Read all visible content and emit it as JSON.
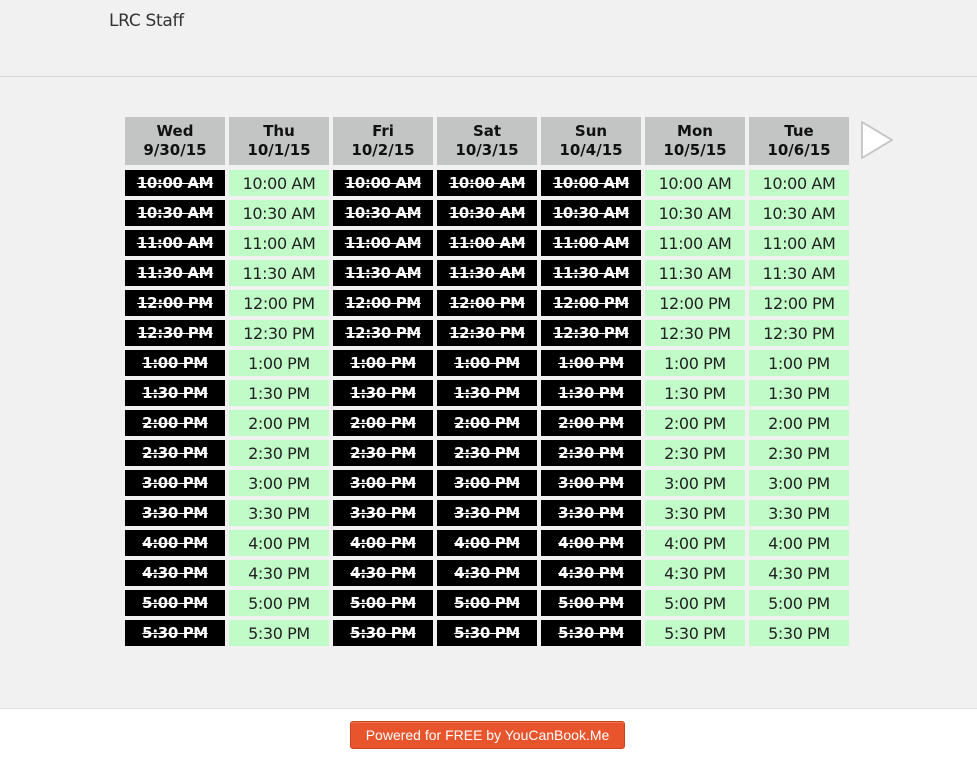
{
  "page": {
    "title": "LRC Staff"
  },
  "schedule": {
    "days": [
      {
        "weekday": "Wed",
        "date": "9/30/15",
        "slots": [
          {
            "time": "10:00 AM",
            "available": false
          },
          {
            "time": "10:30 AM",
            "available": false
          },
          {
            "time": "11:00 AM",
            "available": false
          },
          {
            "time": "11:30 AM",
            "available": false
          },
          {
            "time": "12:00 PM",
            "available": false
          },
          {
            "time": "12:30 PM",
            "available": false
          },
          {
            "time": "1:00 PM",
            "available": false
          },
          {
            "time": "1:30 PM",
            "available": false
          },
          {
            "time": "2:00 PM",
            "available": false
          },
          {
            "time": "2:30 PM",
            "available": false
          },
          {
            "time": "3:00 PM",
            "available": false
          },
          {
            "time": "3:30 PM",
            "available": false
          },
          {
            "time": "4:00 PM",
            "available": false
          },
          {
            "time": "4:30 PM",
            "available": false
          },
          {
            "time": "5:00 PM",
            "available": false
          },
          {
            "time": "5:30 PM",
            "available": false
          }
        ]
      },
      {
        "weekday": "Thu",
        "date": "10/1/15",
        "slots": [
          {
            "time": "10:00 AM",
            "available": true
          },
          {
            "time": "10:30 AM",
            "available": true
          },
          {
            "time": "11:00 AM",
            "available": true
          },
          {
            "time": "11:30 AM",
            "available": true
          },
          {
            "time": "12:00 PM",
            "available": true
          },
          {
            "time": "12:30 PM",
            "available": true
          },
          {
            "time": "1:00 PM",
            "available": true
          },
          {
            "time": "1:30 PM",
            "available": true
          },
          {
            "time": "2:00 PM",
            "available": true
          },
          {
            "time": "2:30 PM",
            "available": true
          },
          {
            "time": "3:00 PM",
            "available": true
          },
          {
            "time": "3:30 PM",
            "available": true
          },
          {
            "time": "4:00 PM",
            "available": true
          },
          {
            "time": "4:30 PM",
            "available": true
          },
          {
            "time": "5:00 PM",
            "available": true
          },
          {
            "time": "5:30 PM",
            "available": true
          }
        ]
      },
      {
        "weekday": "Fri",
        "date": "10/2/15",
        "slots": [
          {
            "time": "10:00 AM",
            "available": false
          },
          {
            "time": "10:30 AM",
            "available": false
          },
          {
            "time": "11:00 AM",
            "available": false
          },
          {
            "time": "11:30 AM",
            "available": false
          },
          {
            "time": "12:00 PM",
            "available": false
          },
          {
            "time": "12:30 PM",
            "available": false
          },
          {
            "time": "1:00 PM",
            "available": false
          },
          {
            "time": "1:30 PM",
            "available": false
          },
          {
            "time": "2:00 PM",
            "available": false
          },
          {
            "time": "2:30 PM",
            "available": false
          },
          {
            "time": "3:00 PM",
            "available": false
          },
          {
            "time": "3:30 PM",
            "available": false
          },
          {
            "time": "4:00 PM",
            "available": false
          },
          {
            "time": "4:30 PM",
            "available": false
          },
          {
            "time": "5:00 PM",
            "available": false
          },
          {
            "time": "5:30 PM",
            "available": false
          }
        ]
      },
      {
        "weekday": "Sat",
        "date": "10/3/15",
        "slots": [
          {
            "time": "10:00 AM",
            "available": false
          },
          {
            "time": "10:30 AM",
            "available": false
          },
          {
            "time": "11:00 AM",
            "available": false
          },
          {
            "time": "11:30 AM",
            "available": false
          },
          {
            "time": "12:00 PM",
            "available": false
          },
          {
            "time": "12:30 PM",
            "available": false
          },
          {
            "time": "1:00 PM",
            "available": false
          },
          {
            "time": "1:30 PM",
            "available": false
          },
          {
            "time": "2:00 PM",
            "available": false
          },
          {
            "time": "2:30 PM",
            "available": false
          },
          {
            "time": "3:00 PM",
            "available": false
          },
          {
            "time": "3:30 PM",
            "available": false
          },
          {
            "time": "4:00 PM",
            "available": false
          },
          {
            "time": "4:30 PM",
            "available": false
          },
          {
            "time": "5:00 PM",
            "available": false
          },
          {
            "time": "5:30 PM",
            "available": false
          }
        ]
      },
      {
        "weekday": "Sun",
        "date": "10/4/15",
        "slots": [
          {
            "time": "10:00 AM",
            "available": false
          },
          {
            "time": "10:30 AM",
            "available": false
          },
          {
            "time": "11:00 AM",
            "available": false
          },
          {
            "time": "11:30 AM",
            "available": false
          },
          {
            "time": "12:00 PM",
            "available": false
          },
          {
            "time": "12:30 PM",
            "available": false
          },
          {
            "time": "1:00 PM",
            "available": false
          },
          {
            "time": "1:30 PM",
            "available": false
          },
          {
            "time": "2:00 PM",
            "available": false
          },
          {
            "time": "2:30 PM",
            "available": false
          },
          {
            "time": "3:00 PM",
            "available": false
          },
          {
            "time": "3:30 PM",
            "available": false
          },
          {
            "time": "4:00 PM",
            "available": false
          },
          {
            "time": "4:30 PM",
            "available": false
          },
          {
            "time": "5:00 PM",
            "available": false
          },
          {
            "time": "5:30 PM",
            "available": false
          }
        ]
      },
      {
        "weekday": "Mon",
        "date": "10/5/15",
        "slots": [
          {
            "time": "10:00 AM",
            "available": true
          },
          {
            "time": "10:30 AM",
            "available": true
          },
          {
            "time": "11:00 AM",
            "available": true
          },
          {
            "time": "11:30 AM",
            "available": true
          },
          {
            "time": "12:00 PM",
            "available": true
          },
          {
            "time": "12:30 PM",
            "available": true
          },
          {
            "time": "1:00 PM",
            "available": true
          },
          {
            "time": "1:30 PM",
            "available": true
          },
          {
            "time": "2:00 PM",
            "available": true
          },
          {
            "time": "2:30 PM",
            "available": true
          },
          {
            "time": "3:00 PM",
            "available": true
          },
          {
            "time": "3:30 PM",
            "available": true
          },
          {
            "time": "4:00 PM",
            "available": true
          },
          {
            "time": "4:30 PM",
            "available": true
          },
          {
            "time": "5:00 PM",
            "available": true
          },
          {
            "time": "5:30 PM",
            "available": true
          }
        ]
      },
      {
        "weekday": "Tue",
        "date": "10/6/15",
        "slots": [
          {
            "time": "10:00 AM",
            "available": true
          },
          {
            "time": "10:30 AM",
            "available": true
          },
          {
            "time": "11:00 AM",
            "available": true
          },
          {
            "time": "11:30 AM",
            "available": true
          },
          {
            "time": "12:00 PM",
            "available": true
          },
          {
            "time": "12:30 PM",
            "available": true
          },
          {
            "time": "1:00 PM",
            "available": true
          },
          {
            "time": "1:30 PM",
            "available": true
          },
          {
            "time": "2:00 PM",
            "available": true
          },
          {
            "time": "2:30 PM",
            "available": true
          },
          {
            "time": "3:00 PM",
            "available": true
          },
          {
            "time": "3:30 PM",
            "available": true
          },
          {
            "time": "4:00 PM",
            "available": true
          },
          {
            "time": "4:30 PM",
            "available": true
          },
          {
            "time": "5:00 PM",
            "available": true
          },
          {
            "time": "5:30 PM",
            "available": true
          }
        ]
      }
    ],
    "next_icon": "chevron-right-icon"
  },
  "colors": {
    "available": "#c1fcc8",
    "booked": "#000000",
    "header": "#c2c5c3",
    "footer_button": "#e8552c"
  },
  "footer": {
    "powered_label": "Powered for FREE by YouCanBook.Me"
  }
}
